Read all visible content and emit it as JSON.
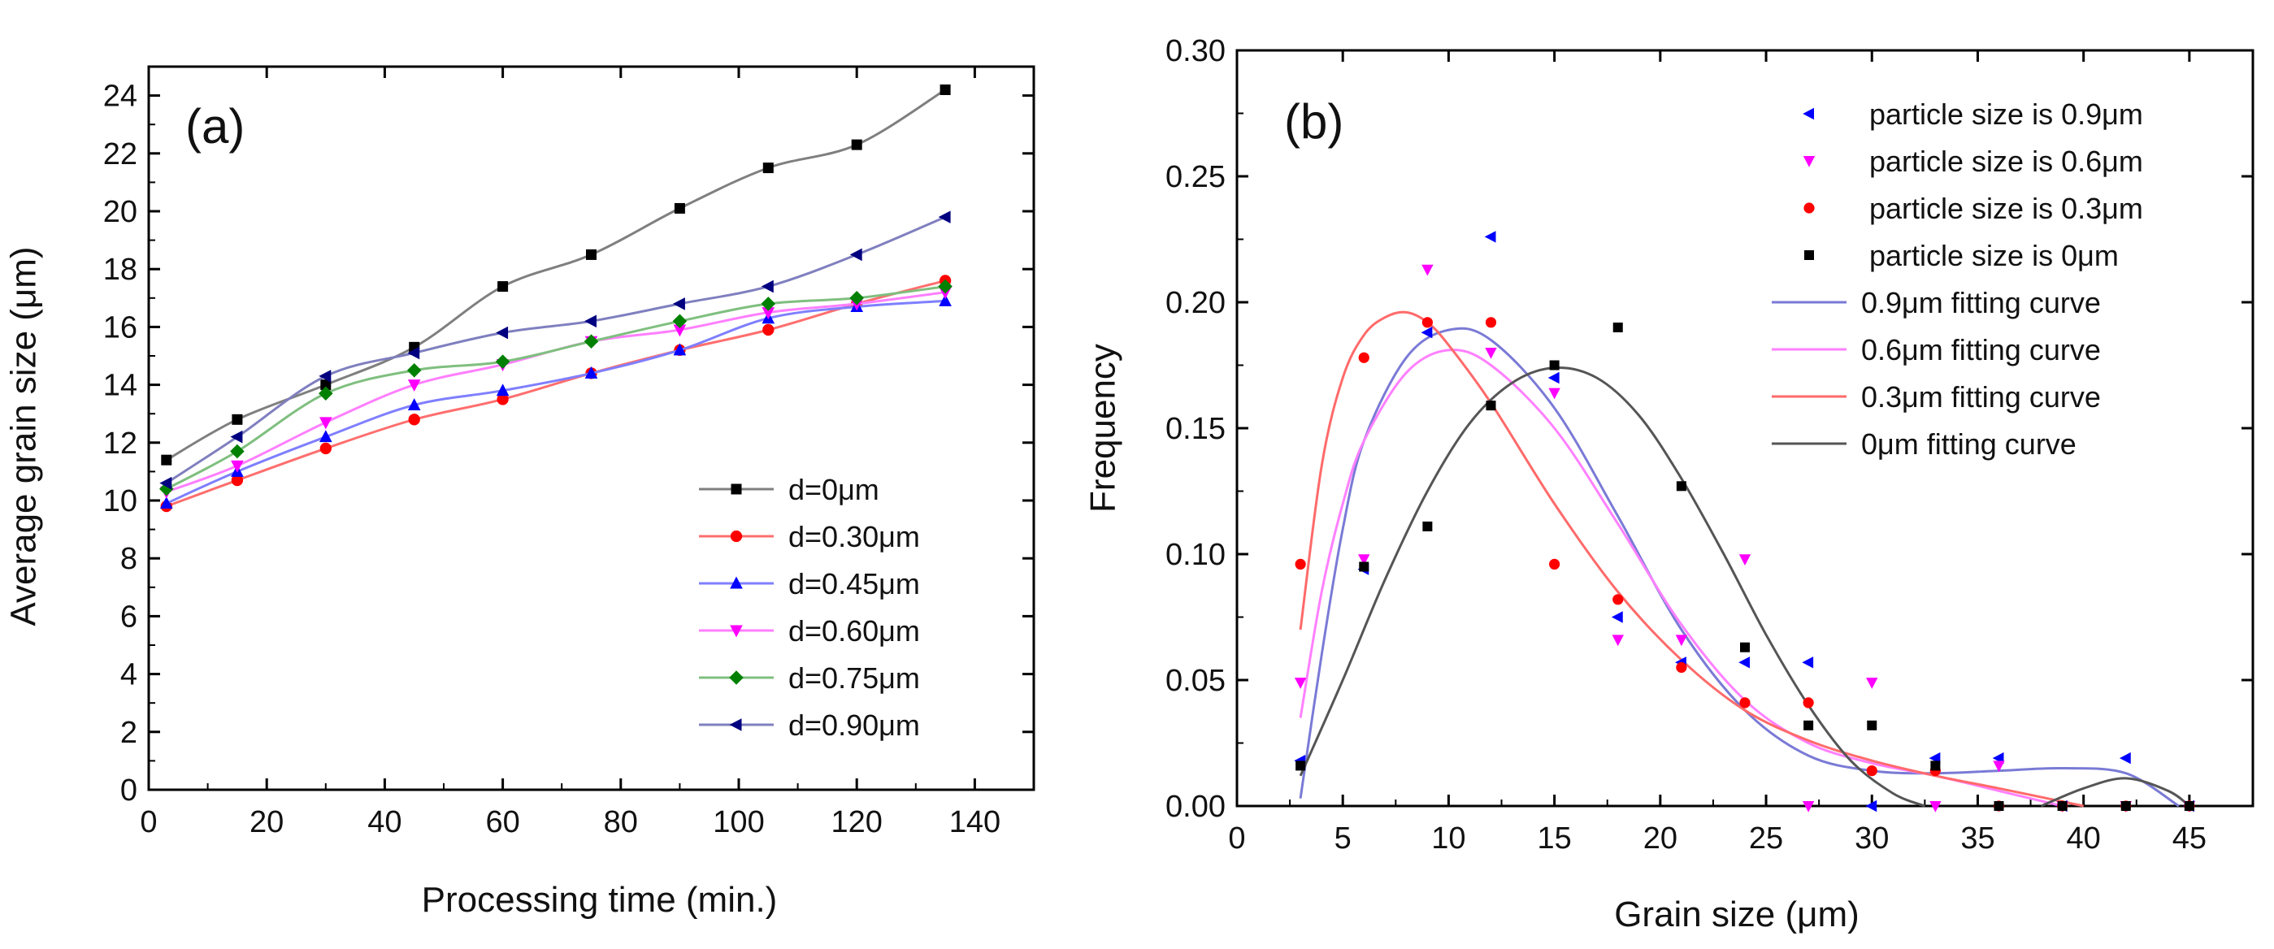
{
  "chart_data": [
    {
      "panel_label": "(a)",
      "type": "line",
      "xlabel": "Processing time (min.)",
      "ylabel": "Average grain size (μm)",
      "xlim": [
        0,
        150
      ],
      "ylim": [
        0,
        25
      ],
      "xticks": [
        0,
        20,
        40,
        60,
        80,
        100,
        120,
        140
      ],
      "yticks": [
        0,
        2,
        4,
        6,
        8,
        10,
        12,
        14,
        16,
        18,
        20,
        22,
        24
      ],
      "grid": false,
      "legend_position": "bottom-right",
      "x": [
        3,
        15,
        30,
        45,
        60,
        75,
        90,
        105,
        120,
        135
      ],
      "series": [
        {
          "name": "d=0μm",
          "color": "#000000",
          "line_color": "#7f7f7f",
          "marker": "square",
          "values": [
            11.4,
            12.8,
            14.0,
            15.3,
            17.4,
            18.5,
            20.1,
            21.5,
            22.3,
            24.2
          ]
        },
        {
          "name": "d=0.30μm",
          "color": "#ff0000",
          "line_color": "#ff6e6e",
          "marker": "circle",
          "values": [
            9.8,
            10.7,
            11.8,
            12.8,
            13.5,
            14.4,
            15.2,
            15.9,
            16.8,
            17.6
          ]
        },
        {
          "name": "d=0.45μm",
          "color": "#0000ff",
          "line_color": "#7f7fff",
          "marker": "triangle-up",
          "values": [
            9.9,
            11.0,
            12.2,
            13.3,
            13.8,
            14.4,
            15.2,
            16.3,
            16.7,
            16.9
          ]
        },
        {
          "name": "d=0.60μm",
          "color": "#ff00ff",
          "line_color": "#ff7fff",
          "marker": "triangle-down",
          "values": [
            10.3,
            11.2,
            12.7,
            14.0,
            14.7,
            15.5,
            15.9,
            16.5,
            16.8,
            17.2
          ]
        },
        {
          "name": "d=0.75μm",
          "color": "#008000",
          "line_color": "#7fbf7f",
          "marker": "diamond",
          "values": [
            10.4,
            11.7,
            13.7,
            14.5,
            14.8,
            15.5,
            16.2,
            16.8,
            17.0,
            17.4
          ]
        },
        {
          "name": "d=0.90μm",
          "color": "#000080",
          "line_color": "#7f7fbf",
          "marker": "triangle-left",
          "values": [
            10.6,
            12.2,
            14.3,
            15.1,
            15.8,
            16.2,
            16.8,
            17.4,
            18.5,
            19.8
          ]
        }
      ]
    },
    {
      "panel_label": "(b)",
      "type": "scatter",
      "xlabel": "Grain size (μm)",
      "ylabel": "Frequency",
      "xlim": [
        0,
        48
      ],
      "ylim": [
        0,
        0.3
      ],
      "xticks": [
        0,
        5,
        10,
        15,
        20,
        25,
        30,
        35,
        40,
        45
      ],
      "yticks": [
        "0.00",
        "0.05",
        "0.10",
        "0.15",
        "0.20",
        "0.25",
        "0.30"
      ],
      "grid": false,
      "legend_position": "top-right",
      "x": [
        3,
        6,
        9,
        12,
        15,
        18,
        21,
        24,
        27,
        30,
        33,
        36,
        39,
        42,
        45
      ],
      "series": [
        {
          "name": "particle size is 0.9μm",
          "color": "#0000ff",
          "marker": "triangle-left",
          "values": [
            0.018,
            0.094,
            0.188,
            0.226,
            0.17,
            0.075,
            0.057,
            0.057,
            0.057,
            0.0,
            0.019,
            0.019,
            0.0,
            0.019,
            0.0
          ]
        },
        {
          "name": "particle size is 0.6μm",
          "color": "#ff00ff",
          "marker": "triangle-down",
          "values": [
            0.049,
            0.098,
            0.213,
            0.18,
            0.164,
            0.066,
            0.066,
            0.098,
            0.0,
            0.049,
            0.0,
            0.016,
            0.0,
            0.0,
            0.0
          ]
        },
        {
          "name": "particle size is 0.3μm",
          "color": "#ff0000",
          "marker": "circle",
          "values": [
            0.096,
            0.178,
            0.192,
            0.192,
            0.096,
            0.082,
            0.055,
            0.041,
            0.041,
            0.014,
            0.014,
            0.0,
            0.0,
            0.0,
            0.0
          ]
        },
        {
          "name": "particle size is 0μm",
          "color": "#000000",
          "marker": "square",
          "values": [
            0.016,
            0.095,
            0.111,
            0.159,
            0.175,
            0.19,
            0.127,
            0.063,
            0.032,
            0.032,
            0.016,
            0.0,
            0.0,
            0.0,
            0.0
          ]
        }
      ],
      "fitting_curves": [
        {
          "name": "0.9μm fitting curve",
          "color": "#7a7ad6",
          "x": [
            3,
            4,
            5,
            6,
            8,
            10,
            12,
            15,
            18,
            21,
            24,
            27,
            30,
            33,
            36,
            39,
            42,
            44.5
          ],
          "values": [
            0.003,
            0.06,
            0.11,
            0.145,
            0.178,
            0.189,
            0.185,
            0.158,
            0.115,
            0.07,
            0.038,
            0.02,
            0.014,
            0.013,
            0.014,
            0.015,
            0.013,
            0.0
          ]
        },
        {
          "name": "0.6μm fitting curve",
          "color": "#ff80ff",
          "x": [
            3,
            4,
            5,
            6,
            8,
            10,
            12,
            15,
            18,
            21,
            24,
            27,
            30,
            33,
            36,
            39
          ],
          "values": [
            0.035,
            0.085,
            0.12,
            0.145,
            0.172,
            0.181,
            0.175,
            0.15,
            0.112,
            0.072,
            0.042,
            0.025,
            0.017,
            0.012,
            0.006,
            0.0
          ]
        },
        {
          "name": "0.3μm fitting curve",
          "color": "#ff6a6a",
          "x": [
            3,
            4,
            5,
            6,
            7,
            8,
            9,
            10,
            12,
            15,
            18,
            21,
            24,
            27,
            30,
            33,
            36,
            40
          ],
          "values": [
            0.07,
            0.135,
            0.17,
            0.187,
            0.194,
            0.196,
            0.192,
            0.183,
            0.16,
            0.12,
            0.085,
            0.058,
            0.038,
            0.026,
            0.018,
            0.012,
            0.007,
            0.0
          ]
        },
        {
          "name": "0μm fitting curve",
          "color": "#555555",
          "x": [
            3,
            5,
            7,
            9,
            11,
            13,
            15,
            17,
            19,
            21,
            23,
            25,
            27,
            29,
            31,
            32.5
          ],
          "values": [
            0.012,
            0.05,
            0.09,
            0.125,
            0.152,
            0.168,
            0.174,
            0.17,
            0.155,
            0.13,
            0.1,
            0.068,
            0.04,
            0.018,
            0.005,
            0.0
          ]
        },
        {
          "name": "",
          "color": "#555555",
          "x": [
            38,
            40,
            42,
            44,
            45
          ],
          "values": [
            0.0,
            0.007,
            0.011,
            0.006,
            0.0
          ]
        }
      ]
    }
  ]
}
